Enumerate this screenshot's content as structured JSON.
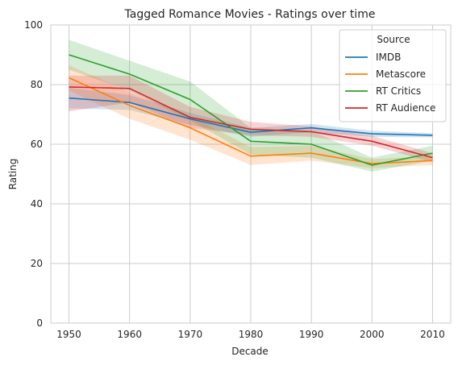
{
  "chart_data": {
    "type": "line",
    "title": "Tagged Romance Movies - Ratings over time",
    "xlabel": "Decade",
    "ylabel": "Rating",
    "x": [
      1950,
      1960,
      1970,
      1980,
      1990,
      2000,
      2010
    ],
    "xlim": [
      1947,
      2013
    ],
    "ylim": [
      0,
      100
    ],
    "yticks": [
      0,
      20,
      40,
      60,
      80,
      100
    ],
    "grid": true,
    "legend": {
      "title": "Source",
      "placement": "top-right"
    },
    "series": [
      {
        "name": "IMDB",
        "color": "#1f77b4",
        "values": [
          75.5,
          74,
          68.5,
          64,
          65.5,
          63.5,
          63
        ],
        "ci_low": [
          72,
          71.5,
          66.5,
          62.5,
          64,
          62.5,
          62.3
        ],
        "ci_high": [
          79,
          76.5,
          70.5,
          65.5,
          66.8,
          64.5,
          63.7
        ]
      },
      {
        "name": "Metascore",
        "color": "#ff7f0e",
        "values": [
          82.3,
          73,
          65.5,
          56,
          57,
          53.5,
          54.5
        ],
        "ci_low": [
          78,
          68.5,
          61.5,
          53,
          54.5,
          52,
          53
        ],
        "ci_high": [
          86.5,
          77.5,
          69.5,
          59,
          59.5,
          55,
          56
        ]
      },
      {
        "name": "RT Critics",
        "color": "#2ca02c",
        "values": [
          90,
          83.5,
          75,
          61,
          60,
          53,
          57
        ],
        "ci_low": [
          85,
          78,
          68,
          56.5,
          55.5,
          50.8,
          54.5
        ],
        "ci_high": [
          95,
          88,
          81,
          65.5,
          64.5,
          55.5,
          59.5
        ]
      },
      {
        "name": "RT Audience",
        "color": "#d62728",
        "values": [
          79.2,
          78.7,
          69,
          65,
          64.2,
          61,
          55.5
        ],
        "ci_low": [
          71,
          74,
          65.5,
          63,
          62.5,
          59.5,
          54
        ],
        "ci_high": [
          83,
          83,
          72.5,
          67.5,
          66,
          62.8,
          57
        ]
      }
    ]
  }
}
